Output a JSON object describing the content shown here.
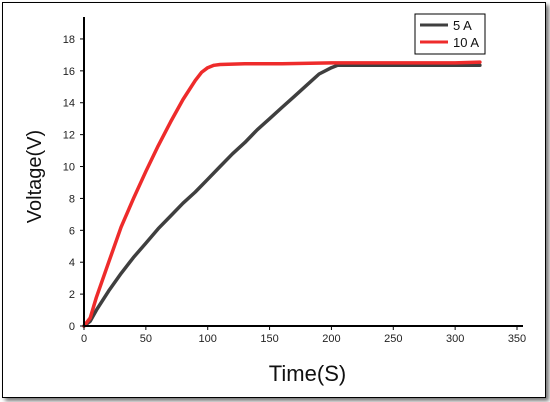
{
  "chart_data": {
    "type": "line",
    "xlabel": "Time(S)",
    "ylabel": "Voltage(V)",
    "xlim": [
      0,
      350
    ],
    "ylim": [
      0,
      19
    ],
    "xticks": [
      0,
      50,
      100,
      150,
      200,
      250,
      300,
      350
    ],
    "yticks": [
      0,
      2,
      4,
      6,
      8,
      10,
      12,
      14,
      16,
      18
    ],
    "grid": false,
    "legend_position": "top-right",
    "series": [
      {
        "name": "5 A",
        "color": "#3f3f3f",
        "x": [
          0,
          5,
          10,
          20,
          30,
          40,
          50,
          60,
          70,
          80,
          90,
          100,
          110,
          120,
          130,
          140,
          150,
          160,
          170,
          180,
          190,
          200,
          205,
          210,
          240,
          270,
          300,
          320
        ],
        "y": [
          0,
          0.3,
          1.0,
          2.2,
          3.3,
          4.3,
          5.2,
          6.1,
          6.9,
          7.7,
          8.4,
          9.2,
          10.0,
          10.8,
          11.5,
          12.3,
          13.0,
          13.7,
          14.4,
          15.1,
          15.8,
          16.2,
          16.35,
          16.35,
          16.35,
          16.35,
          16.35,
          16.35
        ]
      },
      {
        "name": "10 A",
        "color": "#ee2b2b",
        "x": [
          0,
          5,
          10,
          20,
          30,
          40,
          50,
          60,
          70,
          80,
          90,
          95,
          100,
          105,
          110,
          130,
          160,
          200,
          250,
          300,
          320
        ],
        "y": [
          0,
          0.5,
          1.8,
          4.0,
          6.2,
          8.0,
          9.7,
          11.3,
          12.8,
          14.2,
          15.4,
          15.9,
          16.2,
          16.35,
          16.4,
          16.45,
          16.45,
          16.5,
          16.5,
          16.5,
          16.55
        ]
      }
    ]
  }
}
